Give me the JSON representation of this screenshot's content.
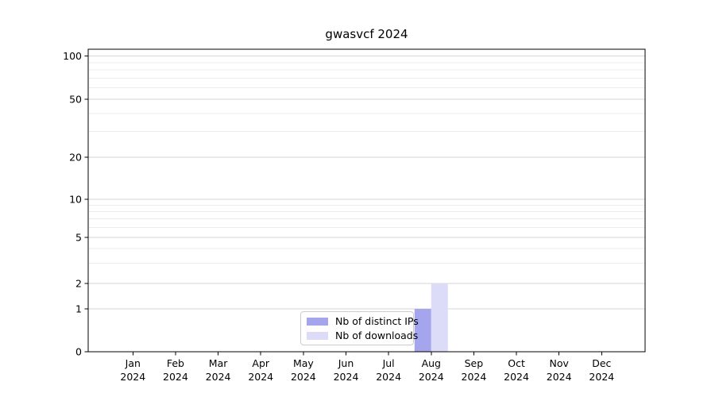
{
  "chart_data": {
    "type": "bar",
    "title": "gwasvcf 2024",
    "categories": [
      "Jan",
      "Feb",
      "Mar",
      "Apr",
      "May",
      "Jun",
      "Jul",
      "Aug",
      "Sep",
      "Oct",
      "Nov",
      "Dec"
    ],
    "x_tick_year": "2024",
    "series": [
      {
        "name": "Nb of distinct IPs",
        "color": "#a5a5ee",
        "values": [
          0,
          0,
          0,
          0,
          0,
          0,
          0,
          1,
          0,
          0,
          0,
          0
        ]
      },
      {
        "name": "Nb of downloads",
        "color": "#dcdcf8",
        "values": [
          0,
          0,
          0,
          0,
          0,
          0,
          0,
          2,
          0,
          0,
          0,
          0
        ]
      }
    ],
    "xlabel": "",
    "ylabel": "",
    "yscale": "symlog",
    "ylim": [
      0,
      112
    ],
    "y_ticks": [
      0,
      1,
      2,
      5,
      10,
      20,
      50,
      100
    ],
    "y_minor_ticks": [
      3,
      4,
      6,
      7,
      8,
      9,
      30,
      40,
      60,
      70,
      80,
      90
    ],
    "y_tick_fractions": {
      "0": 0,
      "1": 0.1417,
      "2": 0.2257,
      "5": 0.378,
      "10": 0.5039,
      "20": 0.643,
      "50": 0.8346,
      "100": 0.9777,
      "112": 1
    },
    "grid": true,
    "legend_position": "lower center",
    "colors": {
      "grid_major": "#d6d6d6",
      "grid_minor": "#ededed",
      "axis": "#000000",
      "background": "#ffffff",
      "legend_border": "#cccccc"
    }
  }
}
